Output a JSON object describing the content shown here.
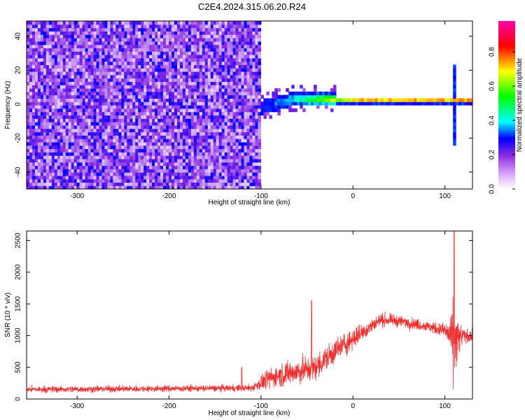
{
  "title": "C2E4.2024.315.06.20.R24",
  "chart_data": [
    {
      "type": "heatmap",
      "xlabel": "Height of straight line (km)",
      "ylabel": "Frequency (Hz)",
      "xlim": [
        -355,
        130
      ],
      "ylim": [
        -50,
        49
      ],
      "xticks": [
        -300,
        -200,
        -100,
        0,
        100
      ],
      "yticks": [
        -40,
        -20,
        0,
        20,
        40
      ],
      "colorbar": {
        "label": "Normalized spectral amplitude",
        "range": [
          0,
          0.98
        ],
        "ticks": [
          0.0,
          0.2,
          0.4,
          0.6,
          0.8
        ],
        "colormap": [
          "#ffffff",
          "#8a2be2",
          "#0000ff",
          "#00ffff",
          "#00ff00",
          "#ffff00",
          "#ff0000",
          "#ff00ff"
        ]
      },
      "features": {
        "noise_region_x": [
          -355,
          -100
        ],
        "noise_level": 0.15,
        "transition_x": [
          -100,
          -20
        ],
        "signal_trace_x": [
          -100,
          130
        ],
        "signal_frequency_hz": 2,
        "signal_peak_amplitude": 0.95,
        "spike_x": 110,
        "spike_frequency_range": [
          -25,
          24
        ]
      }
    },
    {
      "type": "line",
      "xlabel": "Height of straight line (km)",
      "ylabel": "SNR (10 * v/v)",
      "xlim": [
        -355,
        130
      ],
      "ylim": [
        0,
        2650
      ],
      "xticks": [
        -300,
        -200,
        -100,
        0,
        100
      ],
      "yticks": [
        0,
        500,
        1000,
        1500,
        2000,
        2500
      ],
      "color": "#ee3030",
      "envelope": {
        "x": [
          -355,
          -300,
          -200,
          -140,
          -110,
          -95,
          -80,
          -60,
          -40,
          -20,
          0,
          20,
          30,
          50,
          80,
          100,
          105,
          110,
          115,
          120,
          130
        ],
        "mean": [
          150,
          155,
          165,
          170,
          175,
          300,
          380,
          430,
          500,
          750,
          950,
          1150,
          1250,
          1230,
          1150,
          1080,
          1000,
          900,
          950,
          1000,
          980
        ],
        "noise": [
          90,
          90,
          90,
          90,
          100,
          250,
          320,
          380,
          350,
          350,
          300,
          200,
          180,
          160,
          150,
          200,
          450,
          1200,
          500,
          200,
          180
        ]
      },
      "notable_points": [
        {
          "x": 110,
          "y": 2650
        },
        {
          "x": -121,
          "y": 500
        },
        {
          "x": -45,
          "y": 1550
        }
      ]
    }
  ]
}
